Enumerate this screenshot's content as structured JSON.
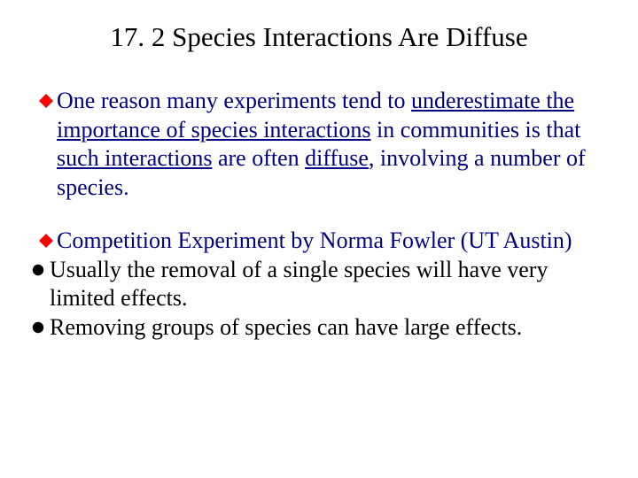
{
  "colors": {
    "title_color": "#000000",
    "body_color_primary": "#000080",
    "body_color_secondary": "#000000",
    "diamond_fill": "#ff0000",
    "circle_fill": "#000000",
    "background": "#ffffff"
  },
  "typography": {
    "title_fontsize": 31,
    "body_fontsize": 26,
    "font_family": "Times New Roman"
  },
  "title": "17. 2  Species Interactions Are Diffuse",
  "bullets": [
    {
      "type": "diamond",
      "color": "primary",
      "segments": [
        {
          "text": "One reason many experiments tend to ",
          "u": false
        },
        {
          "text": "underestimate the importance of species interactions",
          "u": true
        },
        {
          "text": " in communities is that ",
          "u": false
        },
        {
          "text": "such interactions",
          "u": true
        },
        {
          "text": " are often ",
          "u": false
        },
        {
          "text": "diffuse",
          "u": true
        },
        {
          "text": ", involving a number of species.",
          "u": false
        }
      ]
    },
    {
      "type": "diamond",
      "color": "primary",
      "segments": [
        {
          "text": "Competition Experiment by Norma Fowler (UT Austin)",
          "u": false
        }
      ]
    },
    {
      "type": "circle",
      "color": "secondary",
      "segments": [
        {
          "text": "Usually the removal of a single species will have very limited effects.",
          "u": false
        }
      ]
    },
    {
      "type": "circle",
      "color": "secondary",
      "segments": [
        {
          "text": "Removing groups of species can have large effects.",
          "u": false
        }
      ]
    }
  ]
}
